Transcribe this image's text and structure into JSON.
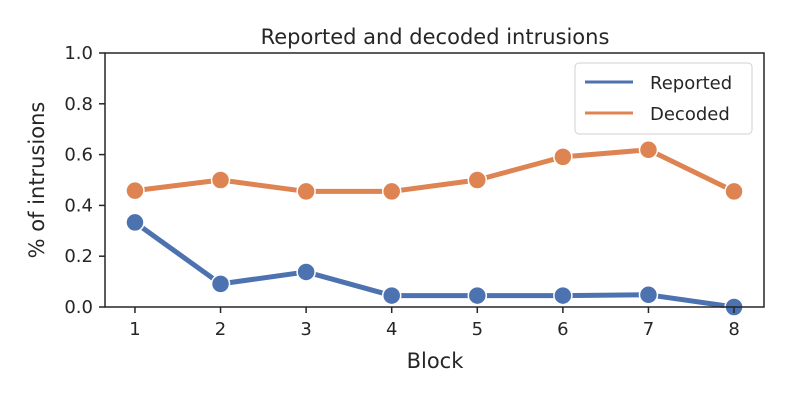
{
  "chart_data": {
    "type": "line",
    "title": "Reported and decoded intrusions",
    "xlabel": "Block",
    "ylabel": "% of intrusions",
    "x": [
      1,
      2,
      3,
      4,
      5,
      6,
      7,
      8
    ],
    "xticks": [
      "1",
      "2",
      "3",
      "4",
      "5",
      "6",
      "7",
      "8"
    ],
    "yticks": [
      "0.0",
      "0.2",
      "0.4",
      "0.6",
      "0.8",
      "1.0"
    ],
    "ylim": [
      0,
      1
    ],
    "xlim": [
      0.65,
      8.35
    ],
    "grid": false,
    "legend_position": "top-right",
    "series": [
      {
        "name": "Reported",
        "color": "#4c72b0",
        "values": [
          0.333,
          0.091,
          0.138,
          0.045,
          0.045,
          0.045,
          0.048,
          0.0
        ]
      },
      {
        "name": "Decoded",
        "color": "#dd8452",
        "values": [
          0.458,
          0.5,
          0.455,
          0.455,
          0.5,
          0.591,
          0.619,
          0.455
        ]
      }
    ]
  }
}
